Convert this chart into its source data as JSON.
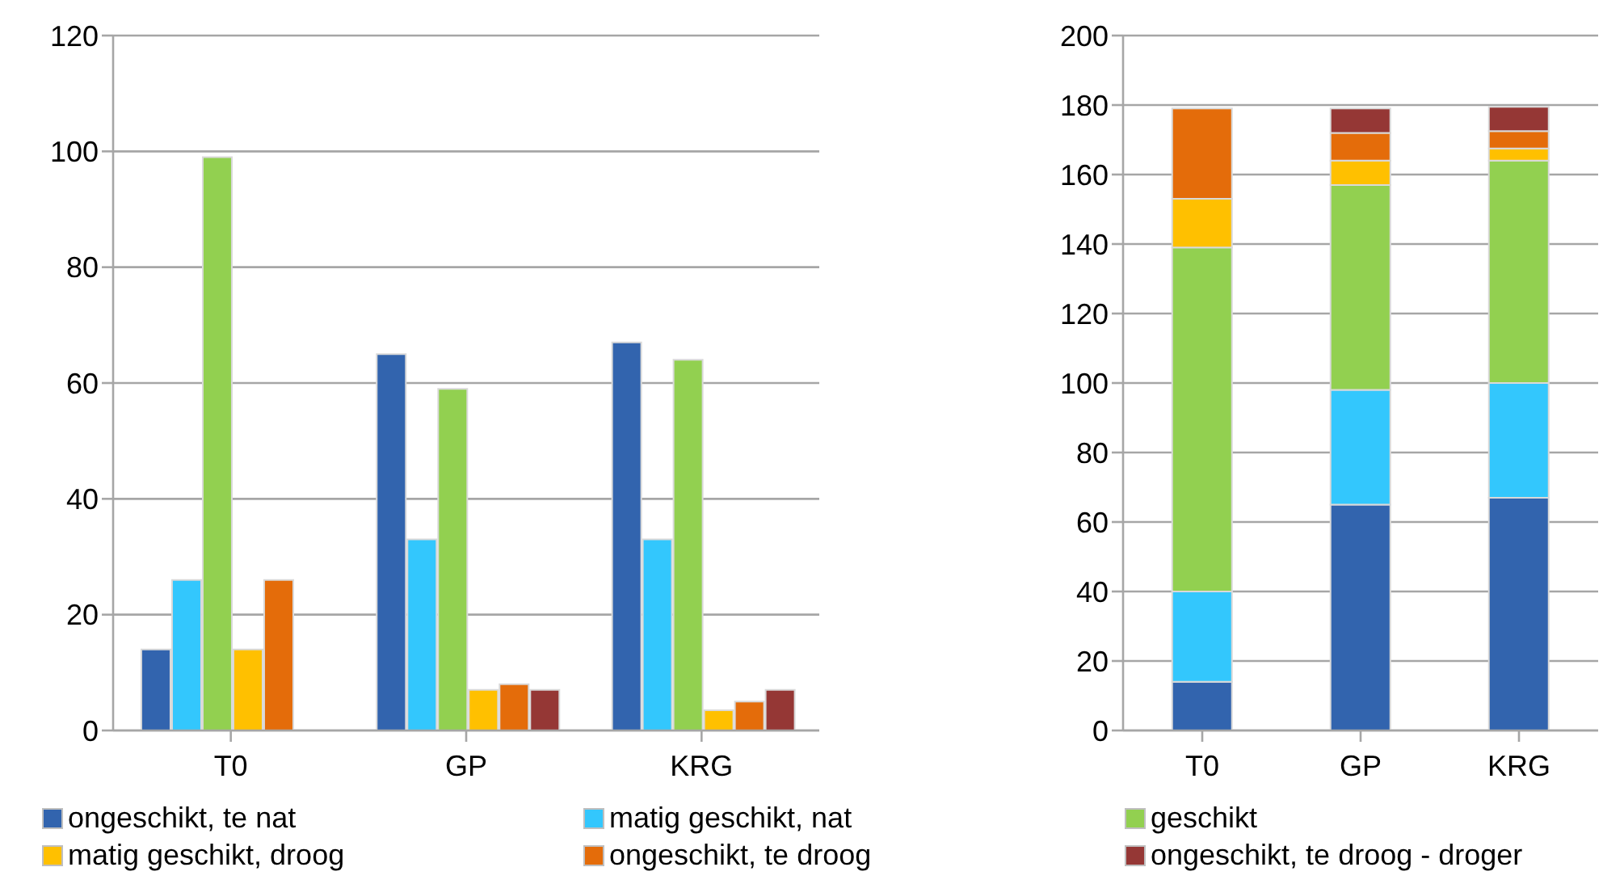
{
  "chart_data": [
    {
      "type": "bar",
      "categories": [
        "T0",
        "GP",
        "KRG"
      ],
      "ylim": [
        0,
        120
      ],
      "yticks": [
        0,
        20,
        40,
        60,
        80,
        100,
        120
      ],
      "grid": "y",
      "legend": "bottom",
      "series": [
        {
          "name": "ongeschikt, te nat",
          "color": "#3264ae",
          "values": [
            14,
            65,
            67
          ]
        },
        {
          "name": "matig geschikt, nat",
          "color": "#33c7fd",
          "values": [
            26,
            33,
            33
          ]
        },
        {
          "name": "geschikt",
          "color": "#92d050",
          "values": [
            99,
            59,
            64
          ]
        },
        {
          "name": "matig geschikt, droog",
          "color": "#ffc000",
          "values": [
            14,
            7,
            3.5
          ]
        },
        {
          "name": "ongeschikt, te droog",
          "color": "#e46c0a",
          "values": [
            26,
            8,
            5
          ]
        },
        {
          "name": "ongeschikt, te droog - droger",
          "color": "#953735",
          "values": [
            0,
            7,
            7
          ]
        }
      ]
    },
    {
      "type": "bar",
      "stacked": true,
      "categories": [
        "T0",
        "GP",
        "KRG"
      ],
      "ylim": [
        0,
        200
      ],
      "yticks": [
        0,
        20,
        40,
        60,
        80,
        100,
        120,
        140,
        160,
        180,
        200
      ],
      "grid": "y",
      "series": [
        {
          "color": "#3264ae",
          "values": [
            14,
            65,
            67
          ]
        },
        {
          "color": "#33c7fd",
          "values": [
            26,
            33,
            33
          ]
        },
        {
          "color": "#92d050",
          "values": [
            99,
            59,
            64
          ]
        },
        {
          "color": "#ffc000",
          "values": [
            14,
            7,
            3.5
          ]
        },
        {
          "color": "#e46c0a",
          "values": [
            26,
            8,
            5
          ]
        },
        {
          "color": "#953735",
          "values": [
            0,
            7,
            7
          ]
        }
      ]
    }
  ]
}
